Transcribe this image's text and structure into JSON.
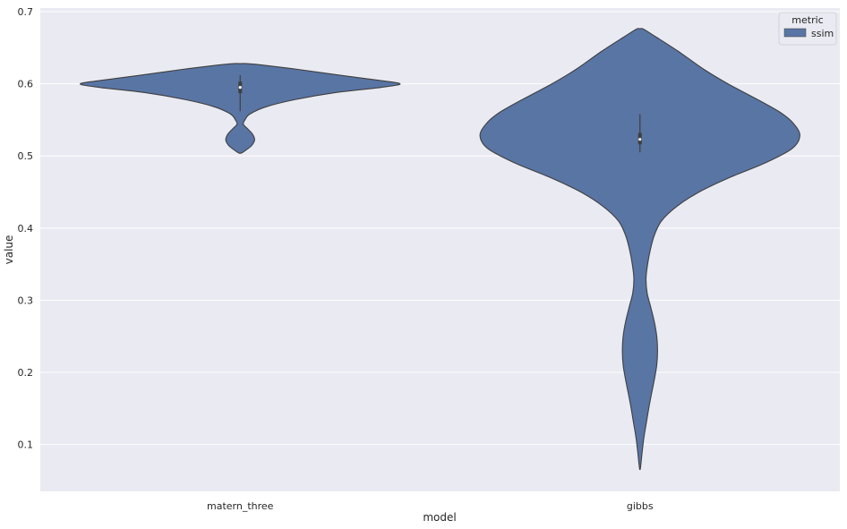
{
  "chart_data": {
    "type": "violin",
    "title": "",
    "xlabel": "model",
    "ylabel": "value",
    "ylim": [
      0.035,
      0.705
    ],
    "yticks": [
      0.1,
      0.2,
      0.3,
      0.4,
      0.5,
      0.6,
      0.7
    ],
    "ytick_labels": [
      "0.1",
      "0.2",
      "0.3",
      "0.4",
      "0.5",
      "0.6",
      "0.7"
    ],
    "categories": [
      "matern_three",
      "gibbs"
    ],
    "grid": true,
    "legend": {
      "title": "metric",
      "placement": "top-right",
      "entries": [
        {
          "label": "ssim",
          "color": "#5875a4"
        }
      ]
    },
    "colors": {
      "violin_fill": "#5875a4",
      "violin_edge": "#3f3f3f",
      "background": "#eaeaf2",
      "grid": "#ffffff"
    },
    "violins": [
      {
        "category": "matern_three",
        "density_profile": [
          [
            0.628,
            0.04
          ],
          [
            0.626,
            0.14
          ],
          [
            0.62,
            0.36
          ],
          [
            0.612,
            0.62
          ],
          [
            0.605,
            0.86
          ],
          [
            0.6,
            1.0
          ],
          [
            0.595,
            0.88
          ],
          [
            0.588,
            0.6
          ],
          [
            0.578,
            0.34
          ],
          [
            0.568,
            0.16
          ],
          [
            0.558,
            0.06
          ],
          [
            0.55,
            0.03
          ],
          [
            0.544,
            0.02
          ],
          [
            0.538,
            0.045
          ],
          [
            0.53,
            0.078
          ],
          [
            0.522,
            0.09
          ],
          [
            0.514,
            0.07
          ],
          [
            0.508,
            0.035
          ],
          [
            0.504,
            0.008
          ]
        ],
        "box": {
          "q1": 0.587,
          "median": 0.595,
          "q3": 0.603,
          "whisker_low": 0.562,
          "whisker_high": 0.612
        }
      },
      {
        "category": "gibbs",
        "density_profile": [
          [
            0.676,
            0.02
          ],
          [
            0.665,
            0.1
          ],
          [
            0.645,
            0.24
          ],
          [
            0.62,
            0.4
          ],
          [
            0.6,
            0.55
          ],
          [
            0.58,
            0.72
          ],
          [
            0.56,
            0.88
          ],
          [
            0.545,
            0.96
          ],
          [
            0.528,
            1.0
          ],
          [
            0.51,
            0.95
          ],
          [
            0.49,
            0.78
          ],
          [
            0.47,
            0.56
          ],
          [
            0.45,
            0.37
          ],
          [
            0.43,
            0.23
          ],
          [
            0.41,
            0.135
          ],
          [
            0.39,
            0.09
          ],
          [
            0.37,
            0.065
          ],
          [
            0.35,
            0.048
          ],
          [
            0.33,
            0.038
          ],
          [
            0.31,
            0.045
          ],
          [
            0.29,
            0.068
          ],
          [
            0.27,
            0.09
          ],
          [
            0.25,
            0.105
          ],
          [
            0.23,
            0.11
          ],
          [
            0.21,
            0.105
          ],
          [
            0.19,
            0.09
          ],
          [
            0.17,
            0.072
          ],
          [
            0.15,
            0.055
          ],
          [
            0.13,
            0.04
          ],
          [
            0.11,
            0.025
          ],
          [
            0.09,
            0.014
          ],
          [
            0.075,
            0.007
          ],
          [
            0.066,
            0.002
          ]
        ],
        "box": {
          "q1": 0.516,
          "median": 0.523,
          "q3": 0.532,
          "whisker_low": 0.505,
          "whisker_high": 0.558
        }
      }
    ]
  }
}
